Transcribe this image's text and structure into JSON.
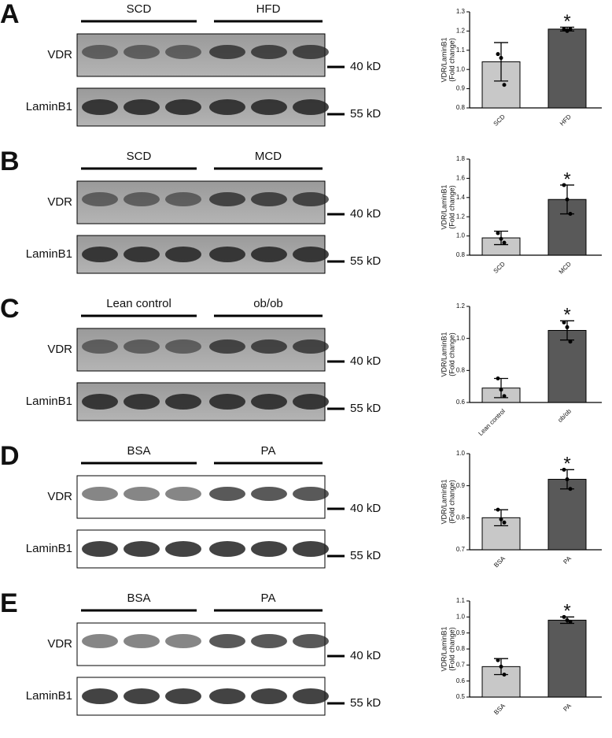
{
  "blots": [
    {
      "letter": "A",
      "groups": [
        "SCD",
        "HFD"
      ],
      "rows": [
        "VDR",
        "LaminB1"
      ],
      "markers": [
        "40 kD",
        "55 kD"
      ]
    },
    {
      "letter": "B",
      "groups": [
        "SCD",
        "MCD"
      ],
      "rows": [
        "VDR",
        "LaminB1"
      ],
      "markers": [
        "40 kD",
        "55 kD"
      ]
    },
    {
      "letter": "C",
      "groups": [
        "Lean control",
        "ob/ob"
      ],
      "rows": [
        "VDR",
        "LaminB1"
      ],
      "markers": [
        "40 kD",
        "55 kD"
      ]
    },
    {
      "letter": "D",
      "groups": [
        "BSA",
        "PA"
      ],
      "rows": [
        "VDR",
        "LaminB1"
      ],
      "markers": [
        "40 kD",
        "55 kD"
      ]
    },
    {
      "letter": "E",
      "groups": [
        "BSA",
        "PA"
      ],
      "rows": [
        "VDR",
        "LaminB1"
      ],
      "markers": [
        "40 kD",
        "55 kD"
      ]
    }
  ],
  "chart_data": [
    {
      "type": "bar",
      "ylabel": [
        "VDR/LaminB1",
        "(Fold change)"
      ],
      "categories": [
        "SCD",
        "HFD"
      ],
      "values": [
        1.04,
        1.21
      ],
      "errors": [
        0.1,
        0.01
      ],
      "points": [
        [
          1.08,
          1.06,
          0.92
        ],
        [
          1.21,
          1.2,
          1.21
        ]
      ],
      "colors": [
        "#c8c8c8",
        "#595959"
      ],
      "annotation": {
        "text": "*",
        "category": "HFD"
      },
      "ylim": [
        0.8,
        1.3
      ],
      "yticks": [
        0.8,
        0.9,
        {
          "value": 1,
          "label": "1.0"
        },
        1.1,
        1.2,
        1.3
      ]
    },
    {
      "type": "bar",
      "ylabel": [
        "VDR/LaminB1",
        "(Fold change)"
      ],
      "categories": [
        "SCD",
        "MCD"
      ],
      "values": [
        0.98,
        1.38
      ],
      "errors": [
        0.07,
        0.15
      ],
      "points": [
        [
          1.03,
          0.97,
          0.93
        ],
        [
          1.53,
          1.38,
          1.23
        ]
      ],
      "colors": [
        "#c8c8c8",
        "#595959"
      ],
      "annotation": {
        "text": "*",
        "category": "MCD"
      },
      "ylim": [
        0.8,
        1.8
      ],
      "yticks": [
        0.8,
        {
          "value": 1,
          "label": "1.0"
        },
        1.2,
        1.4,
        1.6,
        1.8
      ]
    },
    {
      "type": "bar",
      "ylabel": [
        "VDR/LaminB1",
        "(Fold change)"
      ],
      "categories": [
        "Lean control",
        "ob/ob"
      ],
      "values": [
        0.69,
        1.05
      ],
      "errors": [
        0.06,
        0.06
      ],
      "points": [
        [
          0.75,
          0.68,
          0.64
        ],
        [
          1.1,
          1.07,
          0.98
        ]
      ],
      "colors": [
        "#c8c8c8",
        "#595959"
      ],
      "annotation": {
        "text": "*",
        "category": "ob/ob"
      },
      "ylim": [
        0.6,
        1.2
      ],
      "yticks": [
        0.6,
        0.8,
        {
          "value": 1,
          "label": "1.0"
        },
        1.2
      ]
    },
    {
      "type": "bar",
      "ylabel": [
        "VDR/LaminB1",
        "(Fold change)"
      ],
      "categories": [
        "BSA",
        "PA"
      ],
      "values": [
        0.8,
        0.92
      ],
      "errors": [
        0.025,
        0.03
      ],
      "points": [
        [
          0.825,
          0.795,
          0.785
        ],
        [
          0.95,
          0.92,
          0.89
        ]
      ],
      "colors": [
        "#c8c8c8",
        "#595959"
      ],
      "annotation": {
        "text": "*",
        "category": "PA"
      },
      "ylim": [
        0.7,
        1
      ],
      "yticks": [
        0.7,
        0.8,
        0.9,
        {
          "value": 1,
          "label": "1.0"
        }
      ]
    },
    {
      "type": "bar",
      "ylabel": [
        "VDR/LaminB1",
        "(Fold change)"
      ],
      "categories": [
        "BSA",
        "PA"
      ],
      "values": [
        0.69,
        0.98
      ],
      "errors": [
        0.05,
        0.02
      ],
      "points": [
        [
          0.73,
          0.69,
          0.64
        ],
        [
          1,
          0.98,
          0.97
        ]
      ],
      "colors": [
        "#c8c8c8",
        "#595959"
      ],
      "annotation": {
        "text": "*",
        "category": "PA"
      },
      "ylim": [
        0.5,
        1.1
      ],
      "yticks": [
        0.5,
        0.6,
        0.7,
        0.8,
        0.9,
        {
          "value": 1,
          "label": "1.0"
        },
        1.1
      ]
    }
  ]
}
